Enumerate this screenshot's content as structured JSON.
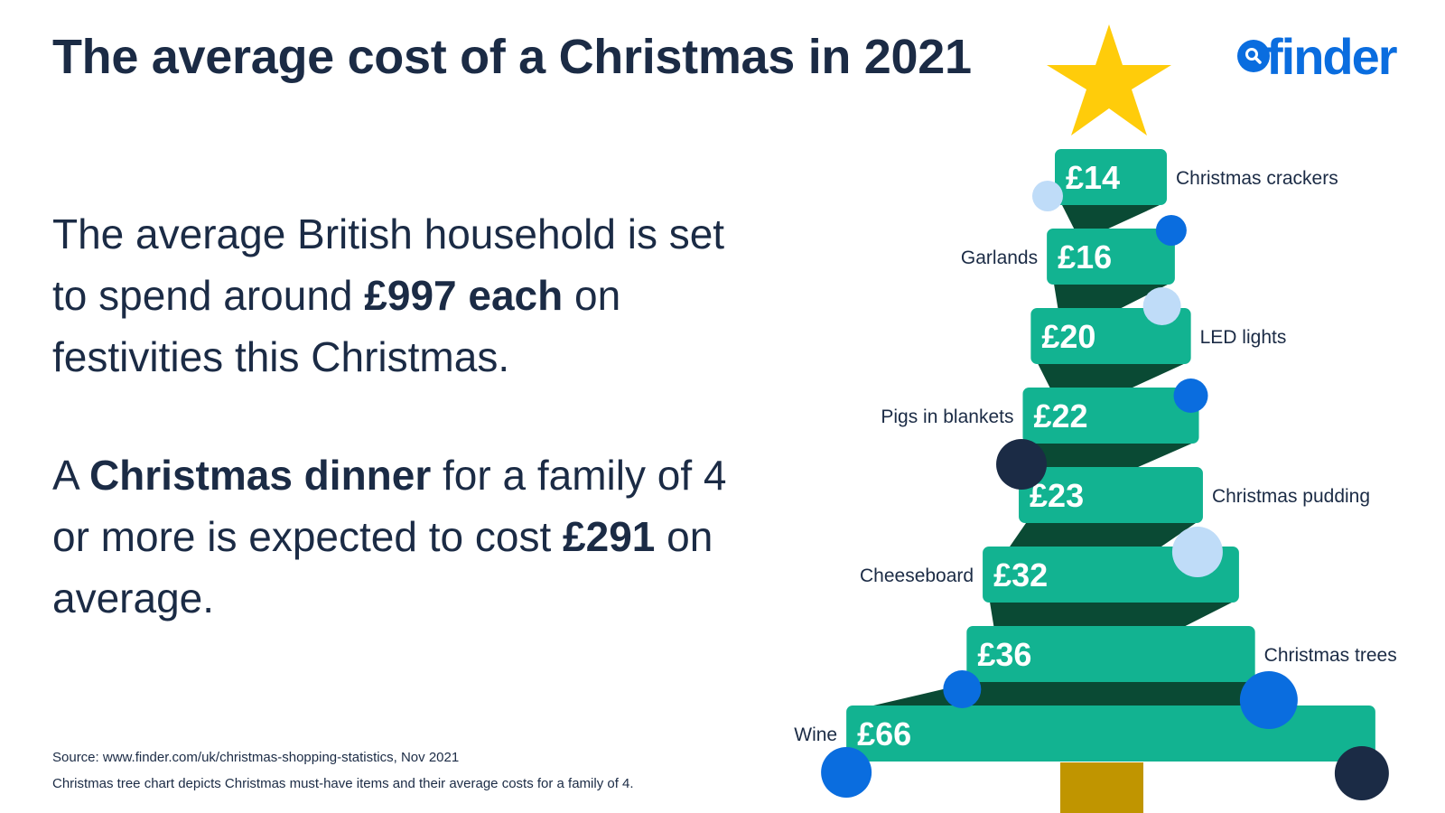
{
  "title": "The average cost of a Christmas in 2021",
  "logo": {
    "text": "finder"
  },
  "paragraph1": {
    "a": "The average British household is set to spend around ",
    "b": "£997 each",
    "c": " on festivities this Christmas."
  },
  "paragraph2": {
    "a": "A ",
    "b": "Christmas dinner",
    "c": " for a family of 4 or more is expected to cost ",
    "d": "£291",
    "e": " on average."
  },
  "source": "Source: www.finder.com/uk/christmas-shopping-statistics, Nov 2021",
  "note": "Christmas tree chart depicts Christmas must-have items and their average costs for a family of 4.",
  "colors": {
    "navy": "#1b2b45",
    "brand_blue": "#0a6ddf",
    "tree_green": "#12b391",
    "dark_green": "#0a4a34",
    "trunk": "#c09500",
    "star": "#ffcc0a",
    "light_blue": "#bfdcf8"
  },
  "chart_data": {
    "type": "bar",
    "title": "The average cost of a Christmas in 2021",
    "currency": "£",
    "categories": [
      "Christmas crackers",
      "Garlands",
      "LED lights",
      "Pigs in blankets",
      "Christmas pudding",
      "Cheeseboard",
      "Christmas trees",
      "Wine"
    ],
    "values": [
      14,
      16,
      20,
      22,
      23,
      32,
      36,
      66
    ],
    "value_labels": [
      "£14",
      "£16",
      "£20",
      "£22",
      "£23",
      "£32",
      "£36",
      "£66"
    ],
    "label_sides": [
      "right",
      "left",
      "right",
      "left",
      "right",
      "left",
      "right",
      "left"
    ],
    "grid": false,
    "legend": "none"
  }
}
